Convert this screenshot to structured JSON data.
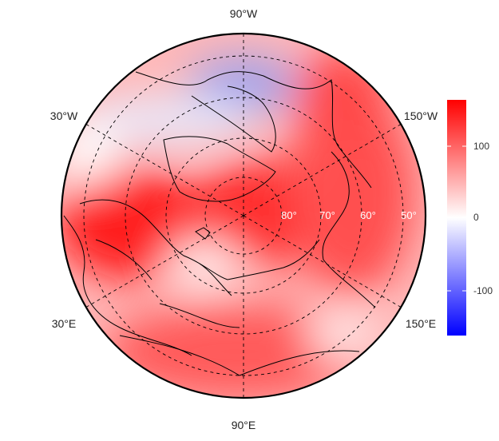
{
  "map": {
    "projection": "polar-stereographic-north",
    "longitude_labels": {
      "top": "90°W",
      "bottom": "90°E",
      "upper_left": "30°W",
      "upper_right": "150°W",
      "lower_left": "30°E",
      "lower_right": "150°E"
    },
    "latitude_labels": [
      "80°",
      "70°",
      "60°",
      "50°"
    ],
    "graticule_latitudes": [
      80,
      70,
      60,
      50,
      40
    ],
    "graticule_longitudes": [
      -90,
      -30,
      30,
      90,
      150,
      -150
    ],
    "coastlines": "black",
    "graticule_style": "dashed"
  },
  "colorbar": {
    "ticks": [
      "100",
      "0",
      "-100"
    ],
    "tick_values": [
      100,
      0,
      -100
    ],
    "range": [
      -160,
      160
    ],
    "colors": {
      "max": "#ff0000",
      "mid": "#ffffff",
      "min": "#0000ff"
    }
  },
  "field": {
    "description_colors": {
      "positive": "#ff2020",
      "neutral": "#ffffff",
      "negative": "#8080e0"
    }
  }
}
